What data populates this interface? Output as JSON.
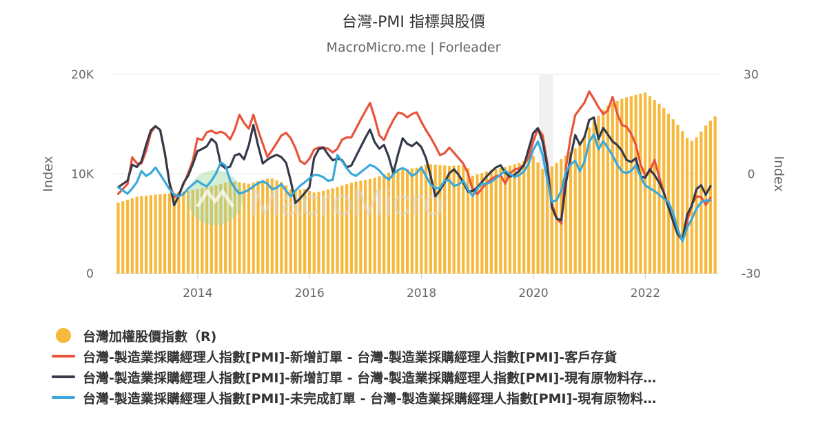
{
  "chart_data": {
    "type": "bar+line",
    "title": "台灣-PMI 指標與股價",
    "subtitle": "MacroMicro.me | Forleader",
    "watermark": "MacroMicro",
    "left_axis": {
      "title": "Index",
      "range": [
        0,
        20000
      ],
      "tick_labels": [
        "20K",
        "10K",
        "0"
      ]
    },
    "right_axis": {
      "title": "Index",
      "range": [
        -30,
        30
      ],
      "tick_labels": [
        "30",
        "0",
        "-30"
      ]
    },
    "x_tick_labels": [
      "2014",
      "2016",
      "2018",
      "2020",
      "2022"
    ],
    "x_range": [
      2012.5,
      2023.3
    ],
    "shaded_period": [
      2020.1,
      2020.35
    ],
    "monthly_start": 2012.58,
    "series": [
      {
        "name": "台灣加權股價指數（R)",
        "type": "bar",
        "axis": "left",
        "color": "#f6b93b",
        "anchors": [
          [
            2012.58,
            7100
          ],
          [
            2012.9,
            7700
          ],
          [
            2013.2,
            7900
          ],
          [
            2013.6,
            8100
          ],
          [
            2013.9,
            8400
          ],
          [
            2014.3,
            8800
          ],
          [
            2014.6,
            9300
          ],
          [
            2014.9,
            9000
          ],
          [
            2015.3,
            9600
          ],
          [
            2015.5,
            9200
          ],
          [
            2015.7,
            8300
          ],
          [
            2015.9,
            8500
          ],
          [
            2016.1,
            8100
          ],
          [
            2016.5,
            8700
          ],
          [
            2016.8,
            9200
          ],
          [
            2017.1,
            9500
          ],
          [
            2017.5,
            10300
          ],
          [
            2017.9,
            10600
          ],
          [
            2018.1,
            11000
          ],
          [
            2018.5,
            10800
          ],
          [
            2018.8,
            10900
          ],
          [
            2018.9,
            9800
          ],
          [
            2019.2,
            10300
          ],
          [
            2019.5,
            10700
          ],
          [
            2019.8,
            11200
          ],
          [
            2020.0,
            11800
          ],
          [
            2020.2,
            10200
          ],
          [
            2020.5,
            11500
          ],
          [
            2020.8,
            12800
          ],
          [
            2021.0,
            14700
          ],
          [
            2021.3,
            16800
          ],
          [
            2021.6,
            17600
          ],
          [
            2022.0,
            18200
          ],
          [
            2022.3,
            16800
          ],
          [
            2022.6,
            14800
          ],
          [
            2022.8,
            13200
          ],
          [
            2022.92,
            13700
          ],
          [
            2023.1,
            15000
          ],
          [
            2023.25,
            15800
          ]
        ]
      },
      {
        "name": "台灣-製造業採購經理人指數[PMI]-新增訂單 - 台灣-製造業採購經理人指數[PMI]-客戶存貨",
        "type": "line",
        "axis": "right",
        "color": "#e8533a",
        "anchors": [
          [
            2012.58,
            -6
          ],
          [
            2012.75,
            -3
          ],
          [
            2012.85,
            7
          ],
          [
            2012.95,
            1
          ],
          [
            2013.1,
            8
          ],
          [
            2013.2,
            15
          ],
          [
            2013.35,
            13
          ],
          [
            2013.5,
            -3
          ],
          [
            2013.6,
            -8
          ],
          [
            2013.7,
            -5
          ],
          [
            2013.9,
            3
          ],
          [
            2014.0,
            11
          ],
          [
            2014.1,
            10
          ],
          [
            2014.2,
            14
          ],
          [
            2014.3,
            12
          ],
          [
            2014.45,
            13
          ],
          [
            2014.6,
            10
          ],
          [
            2014.75,
            18
          ],
          [
            2014.9,
            13
          ],
          [
            2015.0,
            18
          ],
          [
            2015.1,
            12
          ],
          [
            2015.25,
            5
          ],
          [
            2015.4,
            9
          ],
          [
            2015.55,
            13
          ],
          [
            2015.7,
            10
          ],
          [
            2015.85,
            3
          ],
          [
            2015.95,
            3
          ],
          [
            2016.1,
            8
          ],
          [
            2016.3,
            8
          ],
          [
            2016.45,
            6
          ],
          [
            2016.6,
            11
          ],
          [
            2016.75,
            11
          ],
          [
            2016.9,
            16
          ],
          [
            2017.0,
            19
          ],
          [
            2017.1,
            22
          ],
          [
            2017.2,
            14
          ],
          [
            2017.3,
            9
          ],
          [
            2017.45,
            15
          ],
          [
            2017.6,
            19
          ],
          [
            2017.75,
            17
          ],
          [
            2017.9,
            19
          ],
          [
            2018.05,
            14
          ],
          [
            2018.2,
            10
          ],
          [
            2018.35,
            5
          ],
          [
            2018.5,
            8
          ],
          [
            2018.65,
            5
          ],
          [
            2018.8,
            2
          ],
          [
            2018.95,
            -7
          ],
          [
            2019.05,
            -5
          ],
          [
            2019.2,
            -2
          ],
          [
            2019.4,
            0
          ],
          [
            2019.5,
            -3
          ],
          [
            2019.6,
            1
          ],
          [
            2019.8,
            2
          ],
          [
            2019.95,
            6
          ],
          [
            2020.05,
            14
          ],
          [
            2020.15,
            13
          ],
          [
            2020.25,
            3
          ],
          [
            2020.35,
            -12
          ],
          [
            2020.5,
            -15
          ],
          [
            2020.6,
            6
          ],
          [
            2020.75,
            18
          ],
          [
            2020.9,
            21
          ],
          [
            2021.0,
            25
          ],
          [
            2021.1,
            22
          ],
          [
            2021.2,
            19
          ],
          [
            2021.3,
            17
          ],
          [
            2021.4,
            24
          ],
          [
            2021.55,
            15
          ],
          [
            2021.7,
            14
          ],
          [
            2021.85,
            8
          ],
          [
            2021.95,
            0
          ],
          [
            2022.05,
            -1
          ],
          [
            2022.15,
            5
          ],
          [
            2022.3,
            -4
          ],
          [
            2022.45,
            -12
          ],
          [
            2022.55,
            -17
          ],
          [
            2022.65,
            -21
          ],
          [
            2022.75,
            -14
          ],
          [
            2022.85,
            -8
          ],
          [
            2022.95,
            -6
          ],
          [
            2023.05,
            -8
          ],
          [
            2023.12,
            -11
          ],
          [
            2023.2,
            -4
          ]
        ]
      },
      {
        "name": "台灣-製造業採購經理人指數[PMI]-新增訂單 - 台灣-製造業採購經理人指數[PMI]-現有原物料存…",
        "type": "line",
        "axis": "right",
        "color": "#353a4a",
        "anchors": [
          [
            2012.58,
            -4
          ],
          [
            2012.75,
            -2
          ],
          [
            2012.85,
            4
          ],
          [
            2012.95,
            1
          ],
          [
            2013.1,
            10
          ],
          [
            2013.2,
            15
          ],
          [
            2013.35,
            13
          ],
          [
            2013.5,
            -3
          ],
          [
            2013.6,
            -11
          ],
          [
            2013.7,
            -4
          ],
          [
            2013.85,
            0
          ],
          [
            2014.0,
            7
          ],
          [
            2014.15,
            8
          ],
          [
            2014.3,
            12
          ],
          [
            2014.4,
            3
          ],
          [
            2014.55,
            1
          ],
          [
            2014.7,
            7
          ],
          [
            2014.85,
            4
          ],
          [
            2015.0,
            15
          ],
          [
            2015.15,
            3
          ],
          [
            2015.3,
            5
          ],
          [
            2015.45,
            6
          ],
          [
            2015.6,
            3
          ],
          [
            2015.75,
            -9
          ],
          [
            2015.85,
            -7
          ],
          [
            2016.0,
            -4
          ],
          [
            2016.1,
            7
          ],
          [
            2016.25,
            8
          ],
          [
            2016.4,
            4
          ],
          [
            2016.55,
            5
          ],
          [
            2016.7,
            1
          ],
          [
            2016.85,
            6
          ],
          [
            2017.0,
            11
          ],
          [
            2017.1,
            14
          ],
          [
            2017.2,
            7
          ],
          [
            2017.35,
            9
          ],
          [
            2017.5,
            0
          ],
          [
            2017.65,
            11
          ],
          [
            2017.8,
            8
          ],
          [
            2017.95,
            10
          ],
          [
            2018.1,
            4
          ],
          [
            2018.25,
            -7
          ],
          [
            2018.4,
            -3
          ],
          [
            2018.55,
            2
          ],
          [
            2018.7,
            -1
          ],
          [
            2018.85,
            -6
          ],
          [
            2019.0,
            -4
          ],
          [
            2019.2,
            0
          ],
          [
            2019.4,
            3
          ],
          [
            2019.55,
            -1
          ],
          [
            2019.7,
            0
          ],
          [
            2019.85,
            3
          ],
          [
            2019.95,
            10
          ],
          [
            2020.05,
            15
          ],
          [
            2020.15,
            11
          ],
          [
            2020.25,
            2
          ],
          [
            2020.35,
            -13
          ],
          [
            2020.5,
            -14
          ],
          [
            2020.6,
            0
          ],
          [
            2020.75,
            12
          ],
          [
            2020.85,
            8
          ],
          [
            2020.95,
            13
          ],
          [
            2021.05,
            20
          ],
          [
            2021.15,
            10
          ],
          [
            2021.25,
            14
          ],
          [
            2021.4,
            10
          ],
          [
            2021.55,
            8
          ],
          [
            2021.7,
            3
          ],
          [
            2021.85,
            5
          ],
          [
            2021.95,
            -4
          ],
          [
            2022.05,
            2
          ],
          [
            2022.15,
            0
          ],
          [
            2022.3,
            -4
          ],
          [
            2022.45,
            -12
          ],
          [
            2022.55,
            -17
          ],
          [
            2022.65,
            -21
          ],
          [
            2022.75,
            -12
          ],
          [
            2022.85,
            -9
          ],
          [
            2022.95,
            -2
          ],
          [
            2023.05,
            -5
          ],
          [
            2023.12,
            -8
          ],
          [
            2023.2,
            0
          ]
        ]
      },
      {
        "name": "台灣-製造業採購經理人指數[PMI]-未完成訂單 - 台灣-製造業採購經理人指數[PMI]-現有原物料…",
        "type": "line",
        "axis": "right",
        "color": "#3aa9d9",
        "anchors": [
          [
            2012.58,
            -4
          ],
          [
            2012.75,
            -6
          ],
          [
            2012.9,
            -3
          ],
          [
            2013.0,
            1
          ],
          [
            2013.1,
            -1
          ],
          [
            2013.25,
            2
          ],
          [
            2013.4,
            -2
          ],
          [
            2013.55,
            -6
          ],
          [
            2013.7,
            -7
          ],
          [
            2013.85,
            -4
          ],
          [
            2014.0,
            -2
          ],
          [
            2014.15,
            -4
          ],
          [
            2014.3,
            -1
          ],
          [
            2014.45,
            5
          ],
          [
            2014.6,
            -3
          ],
          [
            2014.75,
            -6
          ],
          [
            2014.9,
            -5
          ],
          [
            2015.05,
            -3
          ],
          [
            2015.2,
            -2
          ],
          [
            2015.35,
            -5
          ],
          [
            2015.5,
            -3
          ],
          [
            2015.65,
            -7
          ],
          [
            2015.8,
            -4
          ],
          [
            2015.95,
            -2
          ],
          [
            2016.1,
            0
          ],
          [
            2016.25,
            -1
          ],
          [
            2016.4,
            -3
          ],
          [
            2016.5,
            6
          ],
          [
            2016.65,
            2
          ],
          [
            2016.8,
            -1
          ],
          [
            2016.95,
            1
          ],
          [
            2017.1,
            3
          ],
          [
            2017.25,
            1
          ],
          [
            2017.4,
            -2
          ],
          [
            2017.55,
            1
          ],
          [
            2017.7,
            2
          ],
          [
            2017.85,
            -1
          ],
          [
            2018.0,
            2
          ],
          [
            2018.15,
            -3
          ],
          [
            2018.3,
            -5
          ],
          [
            2018.45,
            -1
          ],
          [
            2018.6,
            -4
          ],
          [
            2018.75,
            -2
          ],
          [
            2018.9,
            -7
          ],
          [
            2019.05,
            -3
          ],
          [
            2019.2,
            -3
          ],
          [
            2019.35,
            -1
          ],
          [
            2019.5,
            1
          ],
          [
            2019.65,
            -1
          ],
          [
            2019.8,
            0
          ],
          [
            2019.95,
            4
          ],
          [
            2020.05,
            11
          ],
          [
            2020.15,
            7
          ],
          [
            2020.25,
            -2
          ],
          [
            2020.35,
            -10
          ],
          [
            2020.5,
            -5
          ],
          [
            2020.6,
            2
          ],
          [
            2020.75,
            4
          ],
          [
            2020.85,
            0
          ],
          [
            2020.95,
            6
          ],
          [
            2021.05,
            14
          ],
          [
            2021.15,
            7
          ],
          [
            2021.25,
            10
          ],
          [
            2021.4,
            6
          ],
          [
            2021.55,
            1
          ],
          [
            2021.7,
            0
          ],
          [
            2021.85,
            3
          ],
          [
            2021.95,
            -3
          ],
          [
            2022.05,
            -4
          ],
          [
            2022.15,
            -5
          ],
          [
            2022.3,
            -7
          ],
          [
            2022.45,
            -9
          ],
          [
            2022.55,
            -15
          ],
          [
            2022.65,
            -21
          ],
          [
            2022.75,
            -16
          ],
          [
            2022.85,
            -13
          ],
          [
            2022.95,
            -9
          ],
          [
            2023.05,
            -8
          ],
          [
            2023.2,
            -8
          ]
        ]
      }
    ]
  }
}
